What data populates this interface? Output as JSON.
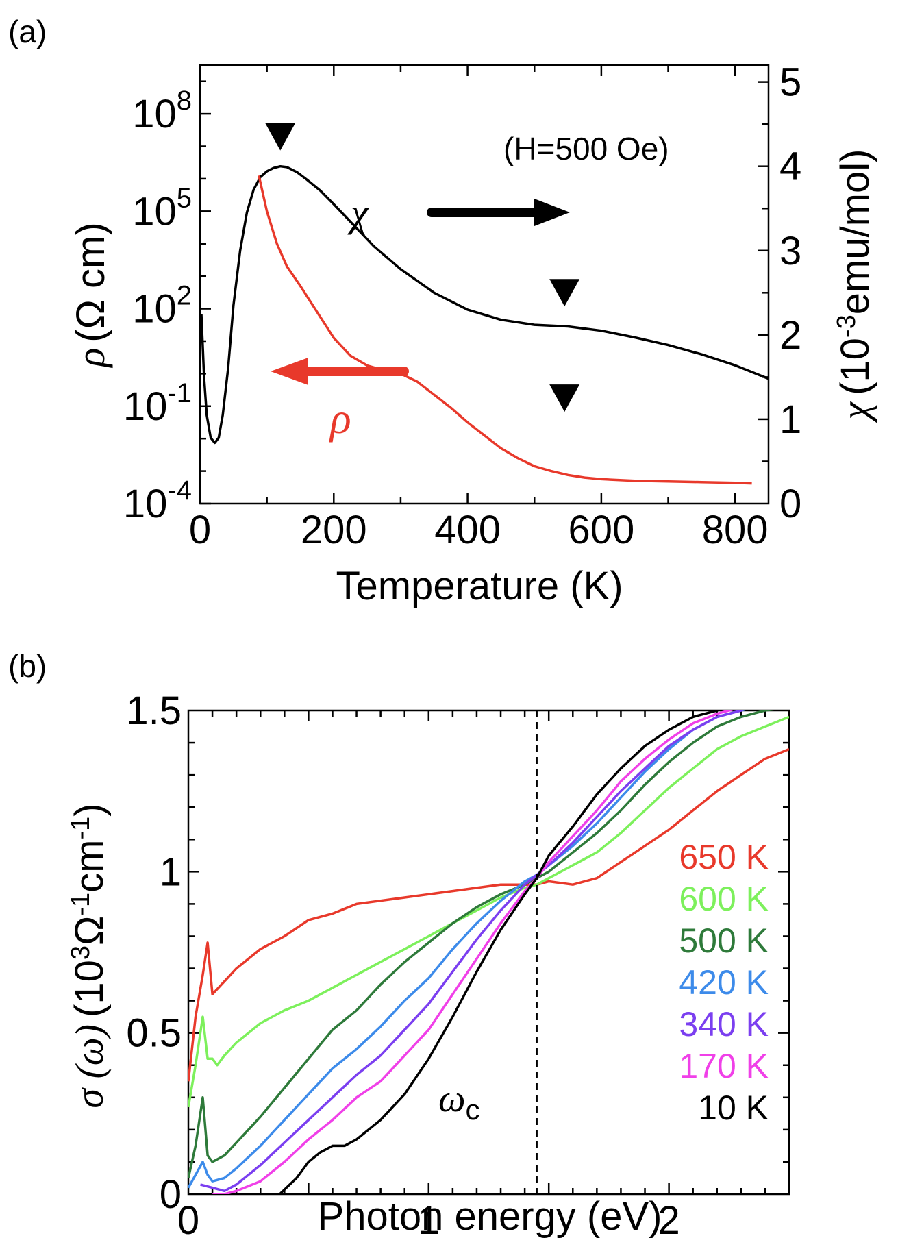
{
  "figure": {
    "panel_a_label": "(a)",
    "panel_b_label": "(b)"
  },
  "chart_data": [
    {
      "type": "line",
      "panel": "(a)",
      "xlabel": "Temperature (K)",
      "xlim": [
        0,
        850
      ],
      "xticks": [
        "0",
        "200",
        "400",
        "600",
        "800"
      ],
      "ylabel_left": {
        "sym": "ρ",
        "unit": "(Ω cm)"
      },
      "y_left_scale": "log10",
      "y_left_lim_exp": [
        -4,
        9.5
      ],
      "y_left_ticks": [
        {
          "exp": 8,
          "label": "10",
          "sup": "8"
        },
        {
          "exp": 5,
          "label": "10",
          "sup": "5"
        },
        {
          "exp": 2,
          "label": "10",
          "sup": "2"
        },
        {
          "exp": -1,
          "label": "10",
          "sup": "-1"
        },
        {
          "exp": -4,
          "label": "10",
          "sup": "-4"
        }
      ],
      "ylabel_right": {
        "sym": "χ",
        "pre": "(10",
        "sup": "-3",
        "post": "emu/mol)"
      },
      "y_right_lim": [
        0,
        5.2
      ],
      "y_right_ticks": [
        "0",
        "1",
        "2",
        "3",
        "4",
        "5"
      ],
      "annotation_field": "(H=500 Oe)",
      "label_chi": "χ",
      "label_rho": "ρ",
      "markers": [
        {
          "T": 120,
          "chi": 4.35
        },
        {
          "T": 545,
          "chi": 2.5
        },
        {
          "T": 545,
          "chi": 1.25
        }
      ],
      "series": [
        {
          "name": "χ",
          "axis": "right",
          "color": "#000000",
          "x": [
            2,
            6,
            10,
            16,
            22,
            28,
            34,
            42,
            50,
            60,
            70,
            80,
            90,
            100,
            110,
            120,
            130,
            145,
            160,
            180,
            200,
            230,
            260,
            300,
            350,
            400,
            450,
            500,
            550,
            600,
            650,
            700,
            750,
            800,
            850
          ],
          "y": [
            2.25,
            1.5,
            1.05,
            0.78,
            0.72,
            0.78,
            1.05,
            1.6,
            2.35,
            3.0,
            3.45,
            3.72,
            3.87,
            3.94,
            3.98,
            4.0,
            3.99,
            3.93,
            3.84,
            3.71,
            3.55,
            3.3,
            3.05,
            2.78,
            2.5,
            2.3,
            2.18,
            2.12,
            2.1,
            2.05,
            1.97,
            1.88,
            1.77,
            1.64,
            1.48
          ]
        },
        {
          "name": "ρ",
          "axis": "left",
          "color": "#e8392b",
          "x": [
            88,
            100,
            115,
            130,
            150,
            175,
            200,
            225,
            250,
            275,
            300,
            325,
            350,
            375,
            400,
            425,
            450,
            475,
            500,
            525,
            550,
            575,
            600,
            650,
            700,
            750,
            800,
            825
          ],
          "y": [
            6.1,
            5.0,
            4.0,
            3.3,
            2.7,
            1.9,
            1.1,
            0.55,
            0.25,
            0.1,
            0.0,
            -0.25,
            -0.65,
            -1.05,
            -1.5,
            -1.9,
            -2.3,
            -2.6,
            -2.85,
            -3.0,
            -3.12,
            -3.2,
            -3.25,
            -3.3,
            -3.32,
            -3.34,
            -3.36,
            -3.38
          ]
        }
      ]
    },
    {
      "type": "line",
      "panel": "(b)",
      "xlabel": "Photon energy (eV)",
      "xlim": [
        0,
        2.5
      ],
      "xticks": [
        "0",
        "1",
        "2"
      ],
      "ylabel": {
        "sym": "σ (ω)",
        "pre": "(10",
        "sup1": "3",
        "mid": "Ω",
        "sup2": "-1",
        "mid2": "cm",
        "sup3": "-1",
        "post": ")"
      },
      "ylim": [
        0,
        1.5
      ],
      "yticks": [
        "0",
        "0.5",
        "1",
        "1.5"
      ],
      "vline_x": 1.45,
      "vline_label": "ω",
      "vline_label_sub": "c",
      "series": [
        {
          "name": "650 K",
          "color": "#e8392b",
          "x": [
            0.0,
            0.03,
            0.06,
            0.08,
            0.1,
            0.15,
            0.2,
            0.3,
            0.4,
            0.5,
            0.6,
            0.7,
            0.8,
            0.9,
            1.0,
            1.1,
            1.2,
            1.3,
            1.4,
            1.45,
            1.5,
            1.6,
            1.7,
            1.8,
            1.9,
            2.0,
            2.1,
            2.2,
            2.3,
            2.4,
            2.5
          ],
          "y": [
            0.35,
            0.55,
            0.68,
            0.78,
            0.62,
            0.66,
            0.7,
            0.76,
            0.8,
            0.85,
            0.87,
            0.9,
            0.91,
            0.92,
            0.93,
            0.94,
            0.95,
            0.96,
            0.96,
            0.96,
            0.97,
            0.96,
            0.98,
            1.03,
            1.08,
            1.13,
            1.19,
            1.25,
            1.3,
            1.35,
            1.38
          ]
        },
        {
          "name": "600 K",
          "color": "#7df05c",
          "x": [
            0.0,
            0.03,
            0.06,
            0.08,
            0.1,
            0.12,
            0.15,
            0.2,
            0.3,
            0.4,
            0.5,
            0.6,
            0.7,
            0.8,
            0.9,
            1.0,
            1.1,
            1.2,
            1.3,
            1.4,
            1.45,
            1.5,
            1.6,
            1.7,
            1.8,
            1.9,
            2.0,
            2.1,
            2.2,
            2.3,
            2.4,
            2.5
          ],
          "y": [
            0.27,
            0.4,
            0.55,
            0.42,
            0.42,
            0.4,
            0.43,
            0.47,
            0.53,
            0.57,
            0.6,
            0.64,
            0.68,
            0.72,
            0.76,
            0.8,
            0.84,
            0.88,
            0.92,
            0.95,
            0.96,
            0.98,
            1.02,
            1.06,
            1.12,
            1.19,
            1.26,
            1.32,
            1.38,
            1.42,
            1.45,
            1.48
          ]
        },
        {
          "name": "500 K",
          "color": "#2e7a3a",
          "x": [
            0.0,
            0.03,
            0.06,
            0.08,
            0.1,
            0.15,
            0.2,
            0.3,
            0.4,
            0.5,
            0.6,
            0.7,
            0.8,
            0.9,
            1.0,
            1.1,
            1.2,
            1.3,
            1.4,
            1.45,
            1.5,
            1.6,
            1.7,
            1.8,
            1.9,
            2.0,
            2.1,
            2.2,
            2.3,
            2.4,
            2.5
          ],
          "y": [
            0.05,
            0.15,
            0.3,
            0.12,
            0.1,
            0.12,
            0.16,
            0.24,
            0.33,
            0.42,
            0.51,
            0.57,
            0.65,
            0.72,
            0.78,
            0.84,
            0.89,
            0.93,
            0.96,
            0.98,
            1.0,
            1.06,
            1.12,
            1.19,
            1.27,
            1.34,
            1.4,
            1.45,
            1.48,
            1.5,
            1.51
          ]
        },
        {
          "name": "420 K",
          "color": "#3d8bea",
          "x": [
            0.0,
            0.03,
            0.06,
            0.08,
            0.1,
            0.15,
            0.2,
            0.3,
            0.4,
            0.5,
            0.6,
            0.7,
            0.8,
            0.9,
            1.0,
            1.1,
            1.2,
            1.3,
            1.4,
            1.45,
            1.5,
            1.6,
            1.7,
            1.8,
            1.9,
            2.0,
            2.1,
            2.2,
            2.3,
            2.35
          ],
          "y": [
            0.02,
            0.06,
            0.1,
            0.06,
            0.04,
            0.05,
            0.08,
            0.15,
            0.23,
            0.31,
            0.39,
            0.45,
            0.52,
            0.6,
            0.67,
            0.76,
            0.84,
            0.91,
            0.97,
            0.99,
            1.02,
            1.08,
            1.15,
            1.23,
            1.31,
            1.38,
            1.44,
            1.48,
            1.5,
            1.51
          ]
        },
        {
          "name": "340 K",
          "color": "#7b3ff0",
          "x": [
            0.05,
            0.1,
            0.15,
            0.2,
            0.3,
            0.4,
            0.5,
            0.6,
            0.7,
            0.8,
            0.9,
            1.0,
            1.1,
            1.2,
            1.3,
            1.4,
            1.45,
            1.5,
            1.6,
            1.7,
            1.8,
            1.9,
            2.0,
            2.1,
            2.2,
            2.3,
            2.33
          ],
          "y": [
            0.03,
            0.02,
            0.01,
            0.03,
            0.09,
            0.16,
            0.23,
            0.3,
            0.37,
            0.43,
            0.51,
            0.59,
            0.69,
            0.79,
            0.88,
            0.96,
            0.99,
            1.02,
            1.09,
            1.17,
            1.25,
            1.32,
            1.39,
            1.44,
            1.48,
            1.5,
            1.51
          ]
        },
        {
          "name": "170 K",
          "color": "#f040e8",
          "x": [
            0.1,
            0.15,
            0.2,
            0.3,
            0.4,
            0.5,
            0.6,
            0.7,
            0.8,
            0.9,
            1.0,
            1.1,
            1.2,
            1.3,
            1.4,
            1.45,
            1.5,
            1.6,
            1.7,
            1.8,
            1.9,
            2.0,
            2.1,
            2.2,
            2.3,
            2.32
          ],
          "y": [
            0.0,
            0.0,
            0.01,
            0.04,
            0.1,
            0.17,
            0.23,
            0.3,
            0.35,
            0.43,
            0.51,
            0.62,
            0.73,
            0.84,
            0.94,
            0.98,
            1.03,
            1.11,
            1.19,
            1.28,
            1.35,
            1.41,
            1.46,
            1.49,
            1.51,
            1.51
          ]
        },
        {
          "name": "10 K",
          "color": "#000000",
          "x": [
            0.38,
            0.45,
            0.5,
            0.55,
            0.6,
            0.65,
            0.7,
            0.8,
            0.9,
            1.0,
            1.1,
            1.2,
            1.3,
            1.4,
            1.45,
            1.5,
            1.6,
            1.7,
            1.8,
            1.9,
            2.0,
            2.1,
            2.2,
            2.25
          ],
          "y": [
            0.0,
            0.05,
            0.1,
            0.13,
            0.15,
            0.15,
            0.17,
            0.23,
            0.31,
            0.42,
            0.55,
            0.69,
            0.82,
            0.93,
            0.98,
            1.05,
            1.14,
            1.24,
            1.32,
            1.39,
            1.44,
            1.48,
            1.5,
            1.51
          ]
        }
      ]
    }
  ]
}
